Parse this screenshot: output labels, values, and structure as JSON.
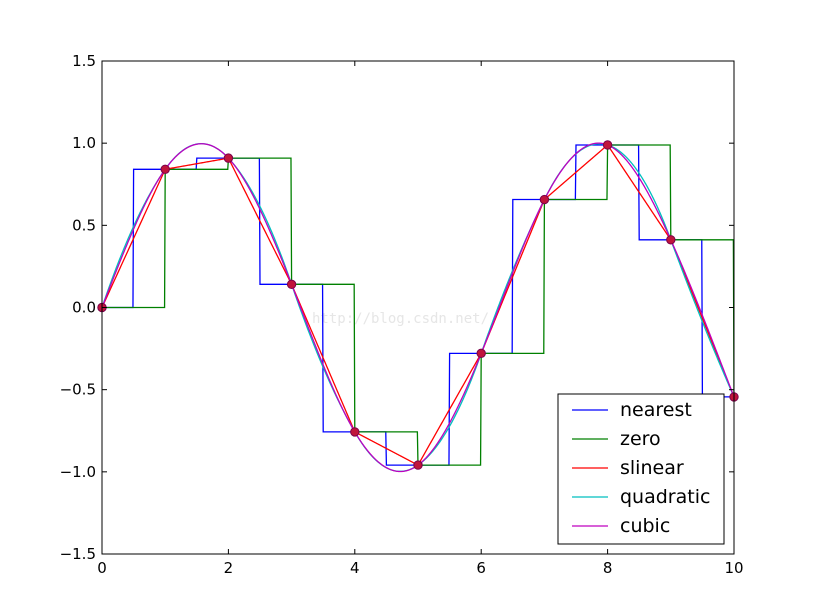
{
  "chart_data": {
    "type": "line",
    "xlim": [
      0,
      10
    ],
    "ylim": [
      -1.5,
      1.5
    ],
    "xticks": [
      0,
      2,
      4,
      6,
      8,
      10
    ],
    "xtick_labels": [
      "0",
      "2",
      "4",
      "6",
      "8",
      "10"
    ],
    "yticks": [
      -1.5,
      -1.0,
      -0.5,
      0.0,
      0.5,
      1.0,
      1.5
    ],
    "ytick_labels": [
      "−1.5",
      "−1.0",
      "−0.5",
      "0.0",
      "0.5",
      "1.0",
      "1.5"
    ],
    "grid": false,
    "legend_position": "lower-right",
    "sample_points": {
      "x": [
        0,
        1,
        2,
        3,
        4,
        5,
        6,
        7,
        8,
        9,
        10
      ],
      "y": [
        0.0,
        0.841,
        0.909,
        0.141,
        -0.757,
        -0.959,
        -0.279,
        0.657,
        0.989,
        0.412,
        -0.544
      ],
      "marker_color": "#c0143c"
    },
    "series": [
      {
        "name": "nearest",
        "kind": "nearest",
        "color": "#0000ff"
      },
      {
        "name": "zero",
        "kind": "zero",
        "color": "#008000"
      },
      {
        "name": "slinear",
        "kind": "slinear",
        "color": "#ff0000"
      },
      {
        "name": "quadratic",
        "kind": "quadratic",
        "color": "#00bfbf"
      },
      {
        "name": "cubic",
        "kind": "cubic",
        "color": "#bf00bf"
      }
    ]
  },
  "watermark": "http://blog.csdn.net/"
}
